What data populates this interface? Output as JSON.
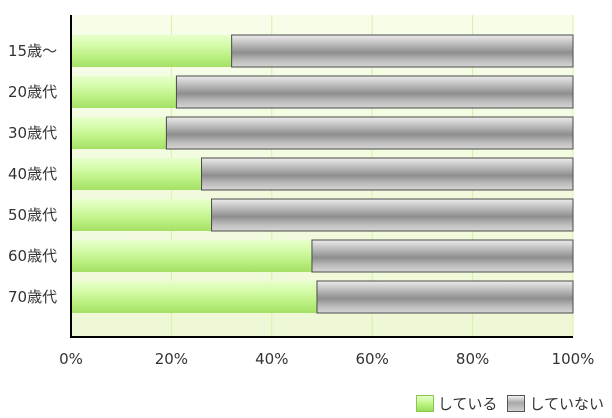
{
  "chart_data": {
    "type": "bar",
    "orientation": "horizontal",
    "stacked": true,
    "percent_stacked": true,
    "categories": [
      "15歳～",
      "20歳代",
      "30歳代",
      "40歳代",
      "50歳代",
      "60歳代",
      "70歳代"
    ],
    "series": [
      {
        "name": "している",
        "values": [
          32,
          21,
          19,
          26,
          28,
          48,
          49
        ],
        "color": "#b8f07e"
      },
      {
        "name": "していない",
        "values": [
          68,
          79,
          81,
          74,
          72,
          52,
          51
        ],
        "color": "#9a9a9a"
      }
    ],
    "xlim": [
      0,
      100
    ],
    "xticks": [
      "0%",
      "20%",
      "40%",
      "60%",
      "80%",
      "100%"
    ],
    "grid": true,
    "legend_position": "bottom-right"
  }
}
